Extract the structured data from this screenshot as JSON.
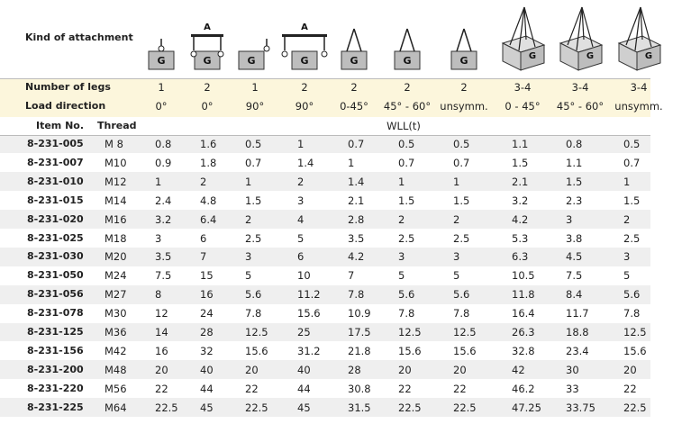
{
  "header_label": "Kind of attachment",
  "icons": [
    [
      "G"
    ],
    [
      "A",
      "G"
    ],
    [
      "G"
    ],
    [
      "A",
      "G"
    ],
    [
      "G"
    ],
    [
      "G"
    ],
    [
      "G"
    ],
    [
      "G"
    ],
    [
      "G"
    ],
    [
      "G"
    ]
  ],
  "legs": {
    "label": "Number of legs",
    "values": [
      "1",
      "2",
      "1",
      "2",
      "2",
      "2",
      "2",
      "3-4",
      "3-4",
      "3-4"
    ]
  },
  "direction": {
    "label": "Load direction",
    "values": [
      "0°",
      "0°",
      "90°",
      "90°",
      "0-45°",
      "45° - 60°",
      "unsymm.",
      "0 - 45°",
      "45° - 60°",
      "unsymm."
    ]
  },
  "columns": {
    "item": "Item No.",
    "thread": "Thread",
    "wll": "WLL(t)"
  },
  "rows": [
    [
      "8-231-005",
      "M 8",
      "0.8",
      "1.6",
      "0.5",
      "1",
      "0.7",
      "0.5",
      "0.5",
      "1.1",
      "0.8",
      "0.5"
    ],
    [
      "8-231-007",
      "M10",
      "0.9",
      "1.8",
      "0.7",
      "1.4",
      "1",
      "0.7",
      "0.7",
      "1.5",
      "1.1",
      "0.7"
    ],
    [
      "8-231-010",
      "M12",
      "1",
      "2",
      "1",
      "2",
      "1.4",
      "1",
      "1",
      "2.1",
      "1.5",
      "1"
    ],
    [
      "8-231-015",
      "M14",
      "2.4",
      "4.8",
      "1.5",
      "3",
      "2.1",
      "1.5",
      "1.5",
      "3.2",
      "2.3",
      "1.5"
    ],
    [
      "8-231-020",
      "M16",
      "3.2",
      "6.4",
      "2",
      "4",
      "2.8",
      "2",
      "2",
      "4.2",
      "3",
      "2"
    ],
    [
      "8-231-025",
      "M18",
      "3",
      "6",
      "2.5",
      "5",
      "3.5",
      "2.5",
      "2.5",
      "5.3",
      "3.8",
      "2.5"
    ],
    [
      "8-231-030",
      "M20",
      "3.5",
      "7",
      "3",
      "6",
      "4.2",
      "3",
      "3",
      "6.3",
      "4.5",
      "3"
    ],
    [
      "8-231-050",
      "M24",
      "7.5",
      "15",
      "5",
      "10",
      "7",
      "5",
      "5",
      "10.5",
      "7.5",
      "5"
    ],
    [
      "8-231-056",
      "M27",
      "8",
      "16",
      "5.6",
      "11.2",
      "7.8",
      "5.6",
      "5.6",
      "11.8",
      "8.4",
      "5.6"
    ],
    [
      "8-231-078",
      "M30",
      "12",
      "24",
      "7.8",
      "15.6",
      "10.9",
      "7.8",
      "7.8",
      "16.4",
      "11.7",
      "7.8"
    ],
    [
      "8-231-125",
      "M36",
      "14",
      "28",
      "12.5",
      "25",
      "17.5",
      "12.5",
      "12.5",
      "26.3",
      "18.8",
      "12.5"
    ],
    [
      "8-231-156",
      "M42",
      "16",
      "32",
      "15.6",
      "31.2",
      "21.8",
      "15.6",
      "15.6",
      "32.8",
      "23.4",
      "15.6"
    ],
    [
      "8-231-200",
      "M48",
      "20",
      "40",
      "20",
      "40",
      "28",
      "20",
      "20",
      "42",
      "30",
      "20"
    ],
    [
      "8-231-220",
      "M56",
      "22",
      "44",
      "22",
      "44",
      "30.8",
      "22",
      "22",
      "46.2",
      "33",
      "22"
    ],
    [
      "8-231-225",
      "M64",
      "22.5",
      "45",
      "22.5",
      "45",
      "31.5",
      "22.5",
      "22.5",
      "47.25",
      "33.75",
      "22.5"
    ]
  ]
}
